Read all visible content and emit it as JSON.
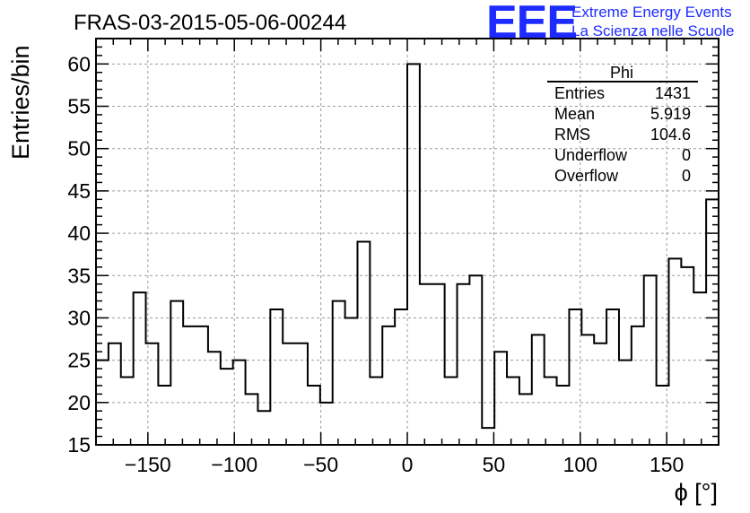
{
  "chart_data": {
    "type": "histogram",
    "title": "FRAS-03-2015-05-06-00244",
    "xlabel": "ϕ [°]",
    "ylabel": "Entries/bin",
    "xlim": [
      -180,
      180
    ],
    "ylim": [
      15,
      63
    ],
    "grid": true,
    "x_ticks": [
      -150,
      -100,
      -50,
      0,
      50,
      100,
      150
    ],
    "x_tick_labels": [
      "−150",
      "−100",
      "−50",
      "0",
      "50",
      "100",
      "150"
    ],
    "y_ticks": [
      15,
      20,
      25,
      30,
      35,
      40,
      45,
      50,
      55,
      60
    ],
    "bin_width": 7.2,
    "bin_edges_start": -180,
    "values": [
      25,
      27,
      23,
      33,
      27,
      22,
      32,
      29,
      29,
      26,
      24,
      25,
      21,
      19,
      31,
      27,
      27,
      22,
      20,
      32,
      30,
      39,
      23,
      29,
      31,
      60,
      34,
      34,
      23,
      34,
      35,
      17,
      26,
      23,
      21,
      28,
      23,
      22,
      31,
      28,
      27,
      31,
      25,
      29,
      35,
      22,
      37,
      36,
      33,
      44
    ],
    "line_color": "#000000",
    "stats_box": {
      "title": "Phi",
      "rows": [
        {
          "label": "Entries",
          "value": "1431"
        },
        {
          "label": "Mean",
          "value": "5.919"
        },
        {
          "label": "RMS",
          "value": "104.6"
        },
        {
          "label": "Underflow",
          "value": "0"
        },
        {
          "label": "Overflow",
          "value": "0"
        }
      ]
    }
  },
  "logo": {
    "mark": "EEE",
    "line1": "Extreme Energy Events",
    "line2": "La Scienza nelle Scuole",
    "color": "#1e2bff"
  }
}
